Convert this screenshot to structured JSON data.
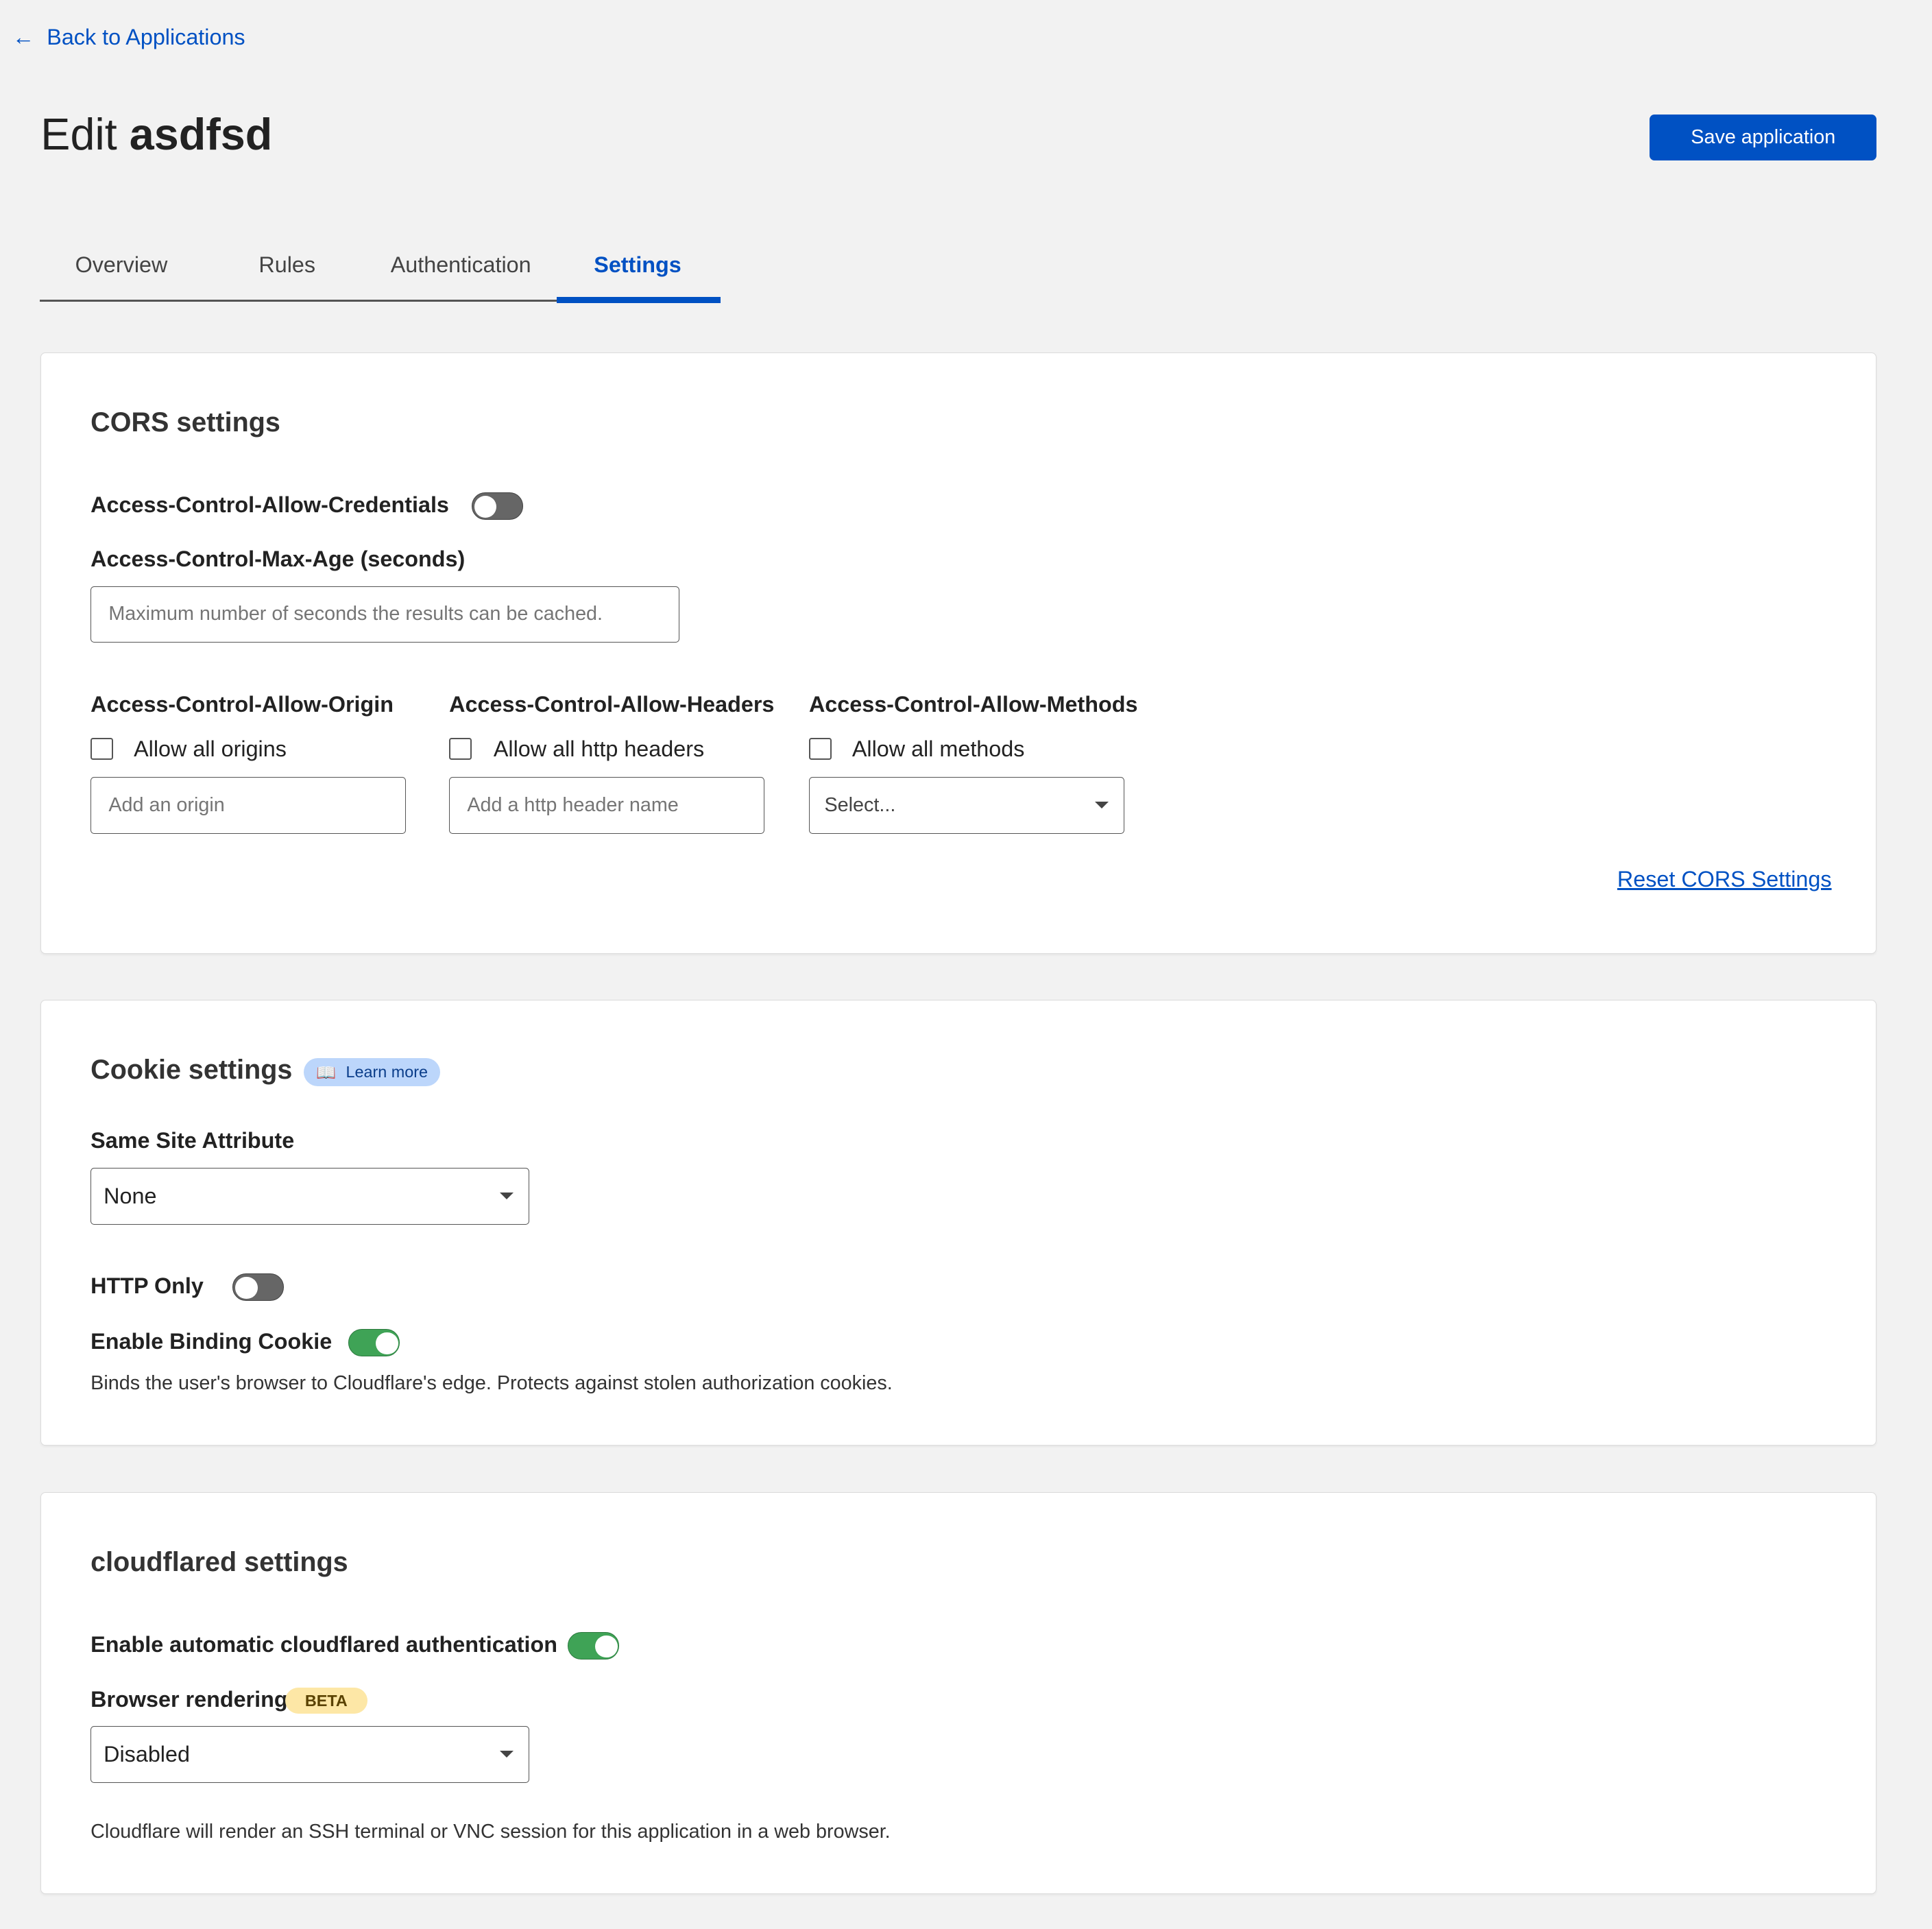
{
  "nav": {
    "back_label": "Back to Applications"
  },
  "header": {
    "title_prefix": "Edit",
    "title_name": "asdfsd",
    "save_label": "Save application"
  },
  "tabs": [
    {
      "label": "Overview"
    },
    {
      "label": "Rules"
    },
    {
      "label": "Authentication"
    },
    {
      "label": "Settings",
      "active": true
    }
  ],
  "cors": {
    "title": "CORS settings",
    "credentials_label": "Access-Control-Allow-Credentials",
    "credentials_on": false,
    "max_age_label": "Access-Control-Max-Age (seconds)",
    "max_age_placeholder": "Maximum number of seconds the results can be cached.",
    "origin_label": "Access-Control-Allow-Origin",
    "origin_checkbox": "Allow all origins",
    "origin_placeholder": "Add an origin",
    "headers_label": "Access-Control-Allow-Headers",
    "headers_checkbox": "Allow all http headers",
    "headers_placeholder": "Add a http header name",
    "methods_label": "Access-Control-Allow-Methods",
    "methods_checkbox": "Allow all methods",
    "methods_value": "Select...",
    "reset_label": "Reset CORS Settings"
  },
  "cookie": {
    "title": "Cookie settings",
    "learn_more": "Learn more",
    "same_site_label": "Same Site Attribute",
    "same_site_value": "None",
    "http_only_label": "HTTP Only",
    "http_only_on": false,
    "binding_label": "Enable Binding Cookie",
    "binding_on": true,
    "binding_desc": "Binds the user's browser to Cloudflare's edge. Protects against stolen authorization cookies."
  },
  "cloudflared": {
    "title": "cloudflared settings",
    "auto_auth_label": "Enable automatic cloudflared authentication",
    "auto_auth_on": true,
    "rendering_label": "Browser rendering",
    "beta_badge": "BETA",
    "rendering_value": "Disabled",
    "rendering_desc": "Cloudflare will render an SSH terminal or VNC session for this application in a web browser."
  },
  "colors": {
    "accent": "#0051c3",
    "toggle_on": "#3fa356",
    "toggle_off": "#666666"
  }
}
